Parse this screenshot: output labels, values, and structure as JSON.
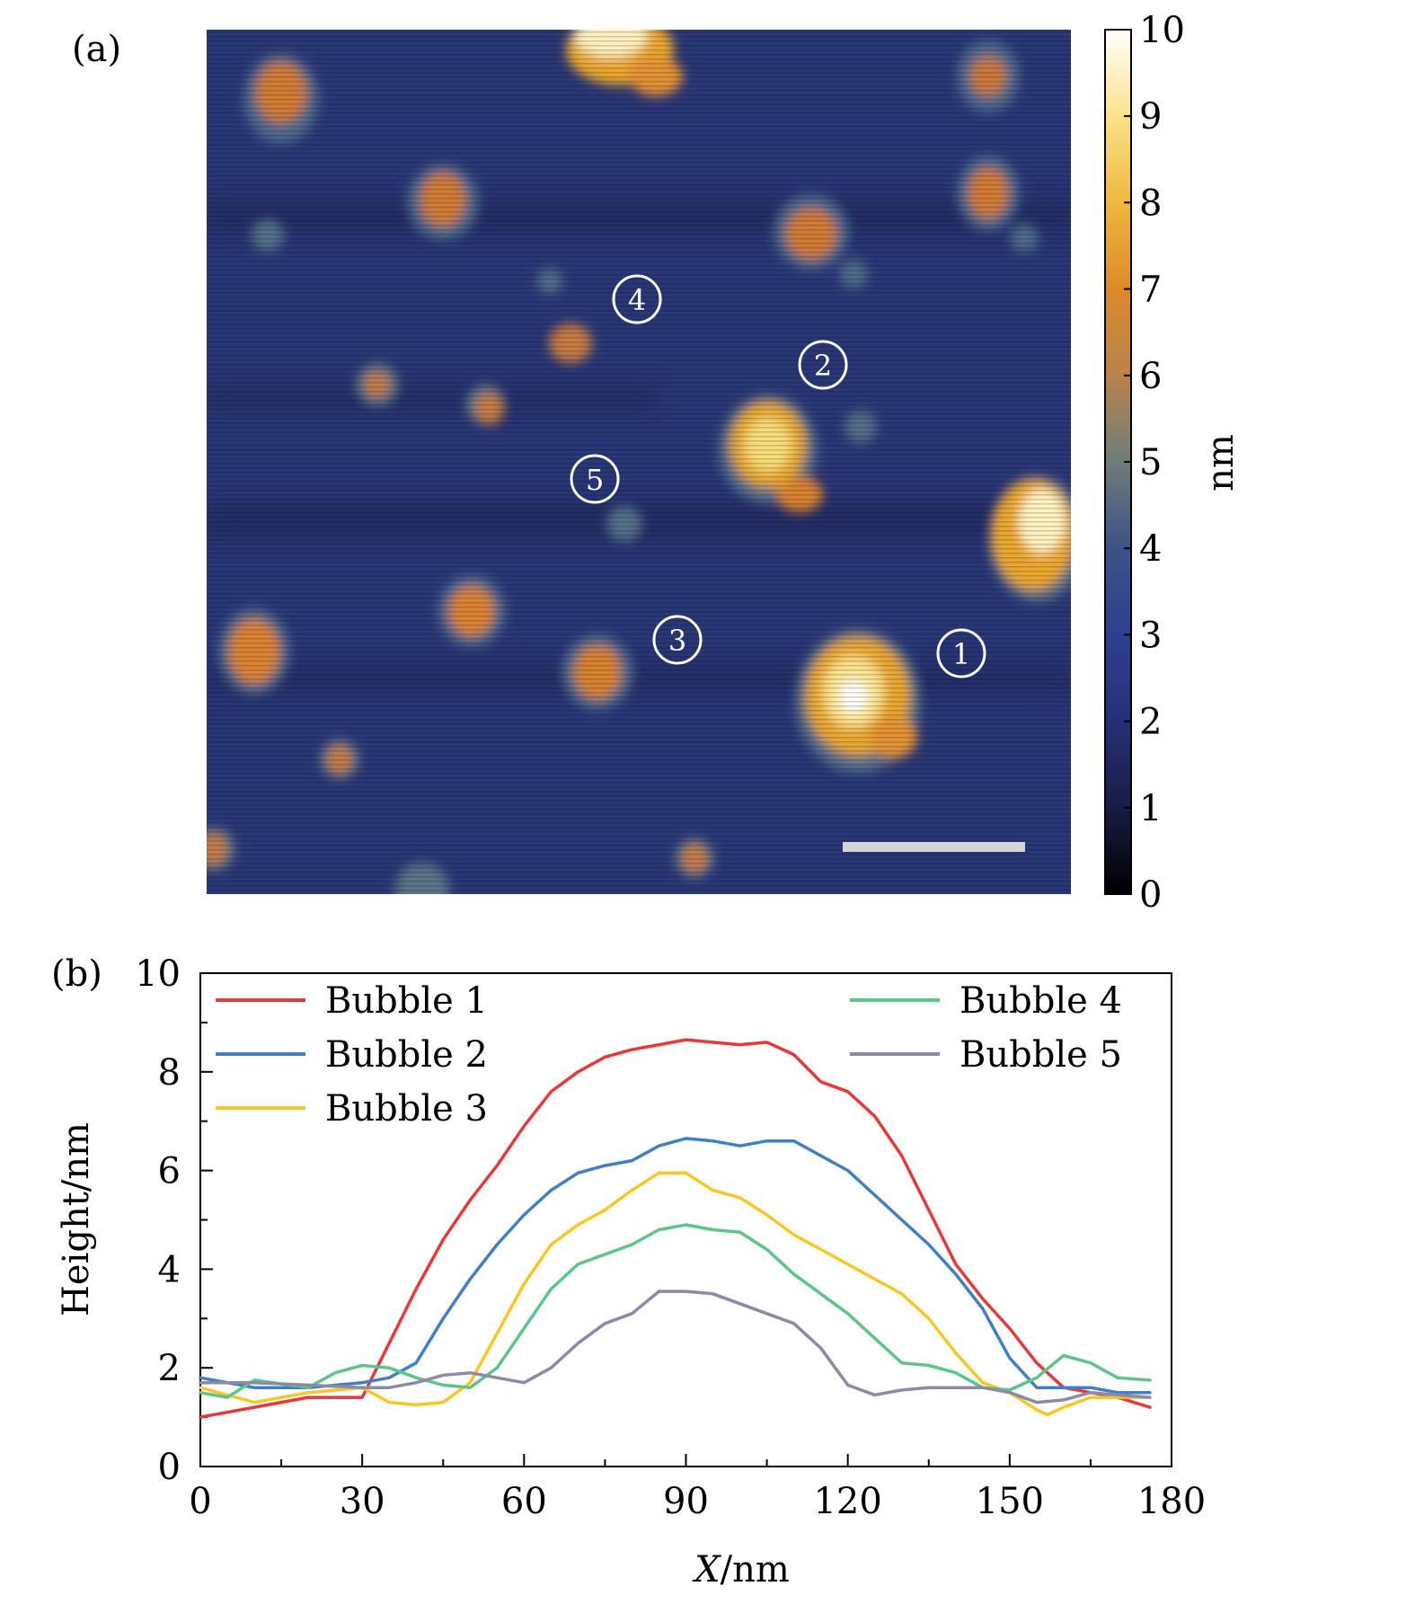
{
  "panel_a": {
    "label": "(a)",
    "colorbar": {
      "unit": "nm",
      "ticks": [
        "0",
        "1",
        "2",
        "3",
        "4",
        "5",
        "6",
        "7",
        "8",
        "9",
        "10"
      ],
      "range": [
        0,
        10
      ],
      "colors": [
        "#000000",
        "#181c45",
        "#25307a",
        "#2f3f8f",
        "#3d5288",
        "#6e7d7a",
        "#b9834a",
        "#dc8a2a",
        "#f0b83c",
        "#fbe28a",
        "#ffffff"
      ]
    },
    "markers": [
      {
        "label": "1"
      },
      {
        "label": "2"
      },
      {
        "label": "3"
      },
      {
        "label": "4"
      },
      {
        "label": "5"
      }
    ],
    "scale_bar": "white-bar"
  },
  "panel_b": {
    "label": "(b)"
  },
  "chart_data": {
    "type": "line",
    "title": "",
    "xlabel_italic": "X",
    "xlabel_unit": "/nm",
    "ylabel": "Height/nm",
    "xlim": [
      0,
      180
    ],
    "ylim": [
      0,
      10
    ],
    "xticks": [
      "0",
      "30",
      "60",
      "90",
      "120",
      "150",
      "180"
    ],
    "yticks": [
      "0",
      "2",
      "4",
      "6",
      "8",
      "10"
    ],
    "legend": "top, two columns",
    "grid": false,
    "series": [
      {
        "name": "Bubble 1",
        "color": "#e6393a",
        "x": [
          0,
          10,
          20,
          30,
          35,
          40,
          45,
          50,
          55,
          60,
          65,
          70,
          75,
          80,
          85,
          90,
          95,
          100,
          105,
          110,
          115,
          120,
          125,
          130,
          135,
          140,
          145,
          150,
          155,
          160,
          165,
          170,
          176
        ],
        "y": [
          1.0,
          1.2,
          1.4,
          1.4,
          2.5,
          3.6,
          4.6,
          5.4,
          6.1,
          6.9,
          7.6,
          8.0,
          8.3,
          8.45,
          8.55,
          8.65,
          8.6,
          8.55,
          8.6,
          8.35,
          7.8,
          7.6,
          7.1,
          6.3,
          5.2,
          4.1,
          3.4,
          2.8,
          2.1,
          1.6,
          1.5,
          1.4,
          1.2
        ]
      },
      {
        "name": "Bubble 2",
        "color": "#3f7fc4",
        "x": [
          0,
          10,
          20,
          30,
          35,
          40,
          45,
          50,
          55,
          60,
          65,
          70,
          75,
          80,
          85,
          90,
          95,
          100,
          105,
          110,
          115,
          120,
          125,
          130,
          135,
          140,
          145,
          150,
          155,
          160,
          165,
          170,
          176
        ],
        "y": [
          1.8,
          1.6,
          1.6,
          1.7,
          1.8,
          2.1,
          3.0,
          3.8,
          4.5,
          5.1,
          5.6,
          5.95,
          6.1,
          6.2,
          6.5,
          6.65,
          6.6,
          6.5,
          6.6,
          6.6,
          6.3,
          6.0,
          5.5,
          5.0,
          4.5,
          3.9,
          3.2,
          2.2,
          1.6,
          1.6,
          1.6,
          1.5,
          1.5
        ]
      },
      {
        "name": "Bubble 3",
        "color": "#f9c623",
        "x": [
          0,
          10,
          20,
          30,
          35,
          40,
          45,
          50,
          55,
          60,
          65,
          70,
          75,
          80,
          85,
          90,
          95,
          100,
          105,
          110,
          115,
          120,
          125,
          130,
          135,
          140,
          145,
          150,
          155,
          157,
          160,
          165,
          170,
          176
        ],
        "y": [
          1.6,
          1.3,
          1.5,
          1.6,
          1.3,
          1.25,
          1.3,
          1.7,
          2.7,
          3.7,
          4.5,
          4.9,
          5.2,
          5.6,
          5.95,
          5.95,
          5.6,
          5.45,
          5.1,
          4.7,
          4.4,
          4.1,
          3.8,
          3.5,
          3.0,
          2.3,
          1.7,
          1.5,
          1.15,
          1.05,
          1.2,
          1.4,
          1.4,
          1.4
        ]
      },
      {
        "name": "Bubble 4",
        "color": "#5cc58a",
        "x": [
          0,
          5,
          10,
          20,
          25,
          30,
          35,
          40,
          45,
          50,
          55,
          60,
          65,
          70,
          75,
          80,
          85,
          90,
          95,
          100,
          105,
          110,
          115,
          120,
          125,
          130,
          135,
          140,
          145,
          150,
          155,
          160,
          165,
          170,
          176
        ],
        "y": [
          1.5,
          1.4,
          1.75,
          1.6,
          1.9,
          2.05,
          2.0,
          1.8,
          1.65,
          1.6,
          2.0,
          2.8,
          3.6,
          4.1,
          4.3,
          4.5,
          4.8,
          4.9,
          4.8,
          4.75,
          4.4,
          3.9,
          3.5,
          3.1,
          2.6,
          2.1,
          2.05,
          1.9,
          1.6,
          1.55,
          1.8,
          2.25,
          2.1,
          1.8,
          1.75
        ]
      },
      {
        "name": "Bubble 5",
        "color": "#8d8aa8",
        "x": [
          0,
          10,
          20,
          30,
          35,
          40,
          45,
          50,
          55,
          60,
          65,
          70,
          75,
          80,
          85,
          90,
          95,
          100,
          105,
          110,
          115,
          120,
          125,
          130,
          135,
          140,
          145,
          150,
          155,
          160,
          165,
          170,
          176
        ],
        "y": [
          1.7,
          1.7,
          1.65,
          1.6,
          1.6,
          1.7,
          1.85,
          1.9,
          1.8,
          1.7,
          2.0,
          2.5,
          2.9,
          3.1,
          3.55,
          3.55,
          3.5,
          3.3,
          3.1,
          2.9,
          2.4,
          1.65,
          1.45,
          1.55,
          1.6,
          1.6,
          1.6,
          1.5,
          1.3,
          1.35,
          1.5,
          1.45,
          1.4
        ]
      }
    ]
  }
}
